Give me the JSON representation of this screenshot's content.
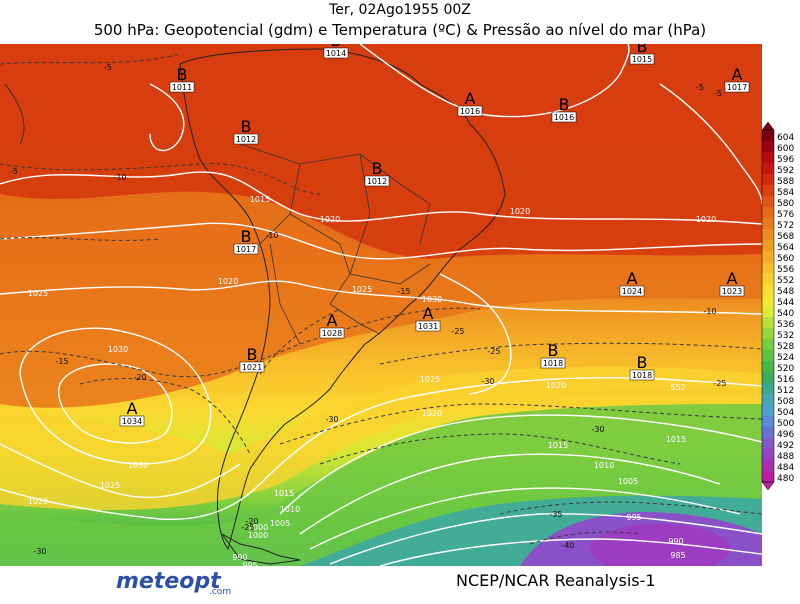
{
  "header": {
    "date_line": "Ter, 02Ago1955 00Z",
    "title": "500 hPa: Geopotencial (gdm) e Temperatura (ºC) & Pressão ao nível do mar (hPa)"
  },
  "colorbar": {
    "levels": [
      "604",
      "600",
      "596",
      "592",
      "588",
      "584",
      "580",
      "576",
      "572",
      "568",
      "564",
      "560",
      "556",
      "552",
      "548",
      "544",
      "540",
      "536",
      "532",
      "528",
      "524",
      "520",
      "516",
      "512",
      "508",
      "504",
      "500",
      "496",
      "492",
      "488",
      "484",
      "480"
    ],
    "colors": [
      "#7a0010",
      "#9a0012",
      "#b40a10",
      "#c81610",
      "#d42a0c",
      "#dc4010",
      "#e05614",
      "#e46a18",
      "#e87c1c",
      "#ec8c20",
      "#f09c24",
      "#f4ac28",
      "#f8bc2c",
      "#fccc30",
      "#fcdc30",
      "#f4e830",
      "#dcea34",
      "#b8e038",
      "#94d63c",
      "#74cc40",
      "#58c444",
      "#44b848",
      "#38ac60",
      "#3aa890",
      "#44a8b4",
      "#4ea0d0",
      "#5a8ad8",
      "#6c70d4",
      "#8058cc",
      "#9444c0",
      "#a830b0",
      "#bc1ca0"
    ]
  },
  "map": {
    "highs": [
      {
        "label": "A",
        "value": "1016"
      },
      {
        "label": "A",
        "value": "1017"
      },
      {
        "label": "A",
        "value": "1028"
      },
      {
        "label": "A",
        "value": "1031"
      },
      {
        "label": "A",
        "value": "1034"
      },
      {
        "label": "A",
        "value": "1024"
      },
      {
        "label": "A",
        "value": "1023"
      }
    ],
    "lows": [
      {
        "label": "B",
        "value": "1011"
      },
      {
        "label": "B",
        "value": "1012"
      },
      {
        "label": "B",
        "value": "1012"
      },
      {
        "label": "B",
        "value": "1015"
      },
      {
        "label": "B",
        "value": "1016"
      },
      {
        "label": "B",
        "value": "1017"
      },
      {
        "label": "B",
        "value": "1021"
      },
      {
        "label": "B",
        "value": "1018"
      },
      {
        "label": "B",
        "value": "1018"
      },
      {
        "label": "B",
        "value": "1014"
      }
    ],
    "isobar_labels": [
      "1015",
      "1020",
      "1020",
      "1020",
      "1025",
      "1025",
      "1030",
      "1030",
      "1025",
      "1020",
      "1015",
      "1010",
      "1005",
      "1000",
      "995",
      "990",
      "1020",
      "1025",
      "1015",
      "1010",
      "1005",
      "1000",
      "995",
      "990",
      "985",
      "1020",
      "1030",
      "1020",
      "1015"
    ],
    "isotherm_labels": [
      "-5",
      "-5",
      "-10",
      "-10",
      "-15",
      "-15",
      "-20",
      "-25",
      "-30",
      "-25",
      "-30",
      "-30",
      "-35",
      "-40",
      "-25",
      "-30",
      "-20",
      "-25",
      "-10",
      "-5",
      "-5"
    ],
    "height_labels": [
      "552"
    ]
  },
  "footer": {
    "logo_text": "meteopt",
    "logo_suffix": ".com",
    "credit": "NCEP/NCAR Reanalysis-1"
  }
}
